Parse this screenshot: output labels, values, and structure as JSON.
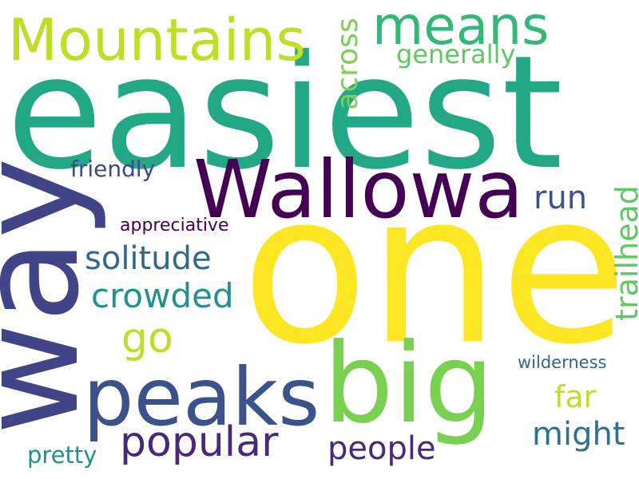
{
  "words": {
    "one": {
      "text": "one",
      "color": "#fde725"
    },
    "easiest": {
      "text": "easiest",
      "color": "#22a884"
    },
    "way": {
      "text": "way",
      "color": "#414487"
    },
    "wallowa": {
      "text": "Wallowa",
      "color": "#440154"
    },
    "big": {
      "text": "big",
      "color": "#7ad151"
    },
    "peaks": {
      "text": "peaks",
      "color": "#3b528b"
    },
    "mountains": {
      "text": "Mountains",
      "color": "#bddf26"
    },
    "means": {
      "text": "means",
      "color": "#35b779"
    },
    "popular": {
      "text": "popular",
      "color": "#482878"
    },
    "solitude": {
      "text": "solitude",
      "color": "#31688e"
    },
    "crowded": {
      "text": "crowded",
      "color": "#21918c"
    },
    "go": {
      "text": "go",
      "color": "#bddf26"
    },
    "trailhead": {
      "text": "trailhead",
      "color": "#5ec962"
    },
    "across": {
      "text": "across",
      "color": "#7ad151"
    },
    "people": {
      "text": "people",
      "color": "#482878"
    },
    "might": {
      "text": "might",
      "color": "#2c728e"
    },
    "far": {
      "text": "far",
      "color": "#bddf26"
    },
    "run": {
      "text": "run",
      "color": "#3b528b"
    },
    "generally": {
      "text": "generally",
      "color": "#5ec962"
    },
    "friendly": {
      "text": "friendly",
      "color": "#3e4989"
    },
    "appreciative": {
      "text": "appreciative",
      "color": "#440154"
    },
    "pretty": {
      "text": "pretty",
      "color": "#21918c"
    },
    "wilderness": {
      "text": "wilderness",
      "color": "#31688e"
    }
  }
}
